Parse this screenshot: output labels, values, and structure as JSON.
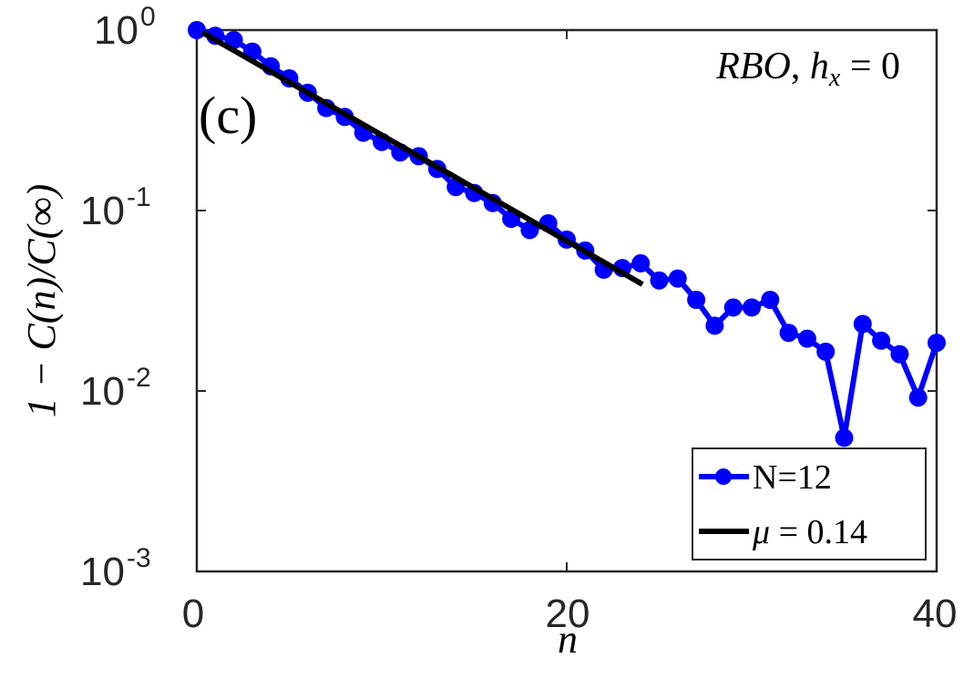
{
  "chart_data": {
    "type": "line",
    "xlabel": "n",
    "ylabel": "1 − C(n)/C(∞)",
    "xlim": [
      0,
      40
    ],
    "ylim": [
      0.001,
      1
    ],
    "yscale": "log",
    "grid": false,
    "xticks": [
      0,
      20,
      40
    ],
    "xtick_labels": [
      "0",
      "20",
      "40"
    ],
    "yticks": [
      1,
      0.1,
      0.01,
      0.001
    ],
    "ytick_labels": [
      {
        "base": "10",
        "exp": "0"
      },
      {
        "base": "10",
        "exp": "-1"
      },
      {
        "base": "10",
        "exp": "-2"
      },
      {
        "base": "10",
        "exp": "-3"
      }
    ],
    "panel_label": "(c)",
    "annotation": {
      "parts": [
        "RBO",
        ", ",
        "h",
        "x",
        " = 0"
      ]
    },
    "legend": {
      "placement": "bottom-right",
      "entries": [
        {
          "label": "N=12",
          "style": "line-marker"
        },
        {
          "label_parts": [
            "μ",
            " = 0.14"
          ],
          "style": "line"
        }
      ]
    },
    "series": [
      {
        "name": "N=12",
        "color": "#0000FF",
        "marker": "circle",
        "x": [
          0,
          1,
          2,
          3,
          4,
          5,
          6,
          7,
          8,
          9,
          10,
          11,
          12,
          13,
          14,
          15,
          16,
          17,
          18,
          19,
          20,
          21,
          22,
          23,
          24,
          25,
          26,
          27,
          28,
          29,
          30,
          31,
          32,
          33,
          34,
          35,
          36,
          37,
          38,
          39,
          40
        ],
        "y": [
          1.0,
          0.93,
          0.88,
          0.76,
          0.63,
          0.54,
          0.45,
          0.37,
          0.33,
          0.27,
          0.24,
          0.21,
          0.2,
          0.17,
          0.135,
          0.125,
          0.11,
          0.09,
          0.078,
          0.085,
          0.069,
          0.06,
          0.047,
          0.048,
          0.051,
          0.041,
          0.042,
          0.032,
          0.023,
          0.029,
          0.029,
          0.032,
          0.021,
          0.0195,
          0.0165,
          0.0055,
          0.0235,
          0.019,
          0.016,
          0.0092,
          0.0185
        ]
      },
      {
        "name": "μ = 0.14",
        "color": "#000000",
        "marker": "none",
        "x": [
          0.3,
          24.1
        ],
        "y": [
          0.97,
          0.039
        ]
      }
    ]
  }
}
